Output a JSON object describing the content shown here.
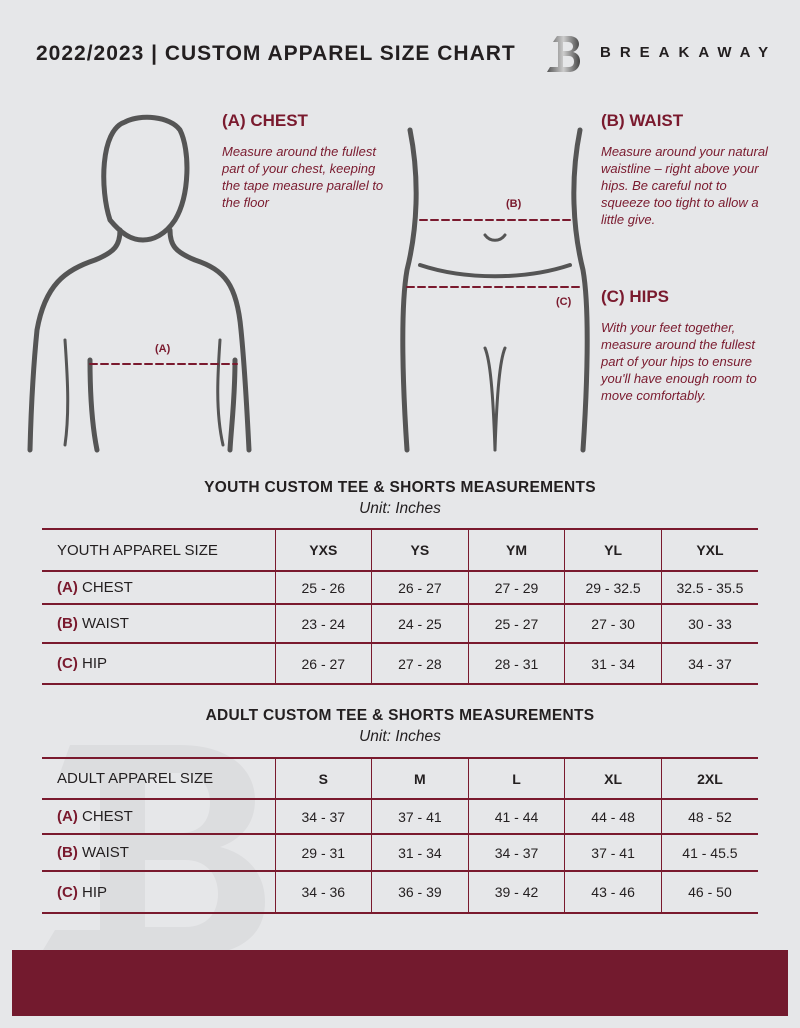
{
  "header": {
    "title": "2022/2023  |  CUSTOM APPAREL SIZE CHART",
    "brand": "BREAKAWAY",
    "logo_letter": "B"
  },
  "measures": {
    "chest": {
      "heading": "(A) CHEST",
      "text": "Measure around the fullest part of your chest, keeping the tape measure parallel to the floor",
      "marker": "(A)"
    },
    "waist": {
      "heading": "(B) WAIST",
      "text": "Measure around your natural waistline – right above your hips. Be careful not to squeeze too tight to allow a little give.",
      "marker": "(B)"
    },
    "hips": {
      "heading": "(C) HIPS",
      "text": "With your feet together, measure around the fullest part of your hips to ensure you'll have enough room to move comfortably.",
      "marker": "(C)"
    }
  },
  "youth": {
    "title": "YOUTH CUSTOM TEE & SHORTS MEASUREMENTS",
    "unit": "Unit: Inches",
    "header": "YOUTH APPAREL SIZE",
    "sizes": [
      "YXS",
      "YS",
      "YM",
      "YL",
      "YXL"
    ],
    "rows": [
      {
        "letter": "(A)",
        "name": "CHEST",
        "values": [
          "25 - 26",
          "26 - 27",
          "27 - 29",
          "29 - 32.5",
          "32.5 - 35.5"
        ]
      },
      {
        "letter": "(B)",
        "name": "WAIST",
        "values": [
          "23 - 24",
          "24 - 25",
          "25 - 27",
          "27 - 30",
          "30 - 33"
        ]
      },
      {
        "letter": "(C)",
        "name": "HIP",
        "values": [
          "26 - 27",
          "27 - 28",
          "28 - 31",
          "31 - 34",
          "34 - 37"
        ]
      }
    ]
  },
  "adult": {
    "title": "ADULT CUSTOM TEE & SHORTS MEASUREMENTS",
    "unit": "Unit: Inches",
    "header": "ADULT APPAREL SIZE",
    "sizes": [
      "S",
      "M",
      "L",
      "XL",
      "2XL"
    ],
    "rows": [
      {
        "letter": "(A)",
        "name": "CHEST",
        "values": [
          "34 - 37",
          "37 - 41",
          "41 - 44",
          "44 - 48",
          "48 - 52"
        ]
      },
      {
        "letter": "(B)",
        "name": "WAIST",
        "values": [
          "29 - 31",
          "31 - 34",
          "34 - 37",
          "37 - 41",
          "41 - 45.5"
        ]
      },
      {
        "letter": "(C)",
        "name": "HIP",
        "values": [
          "34 - 36",
          "36 - 39",
          "39 - 42",
          "43 - 46",
          "46 - 50"
        ]
      }
    ]
  },
  "colors": {
    "accent": "#7a1a2e",
    "background": "#e6e7e9"
  }
}
